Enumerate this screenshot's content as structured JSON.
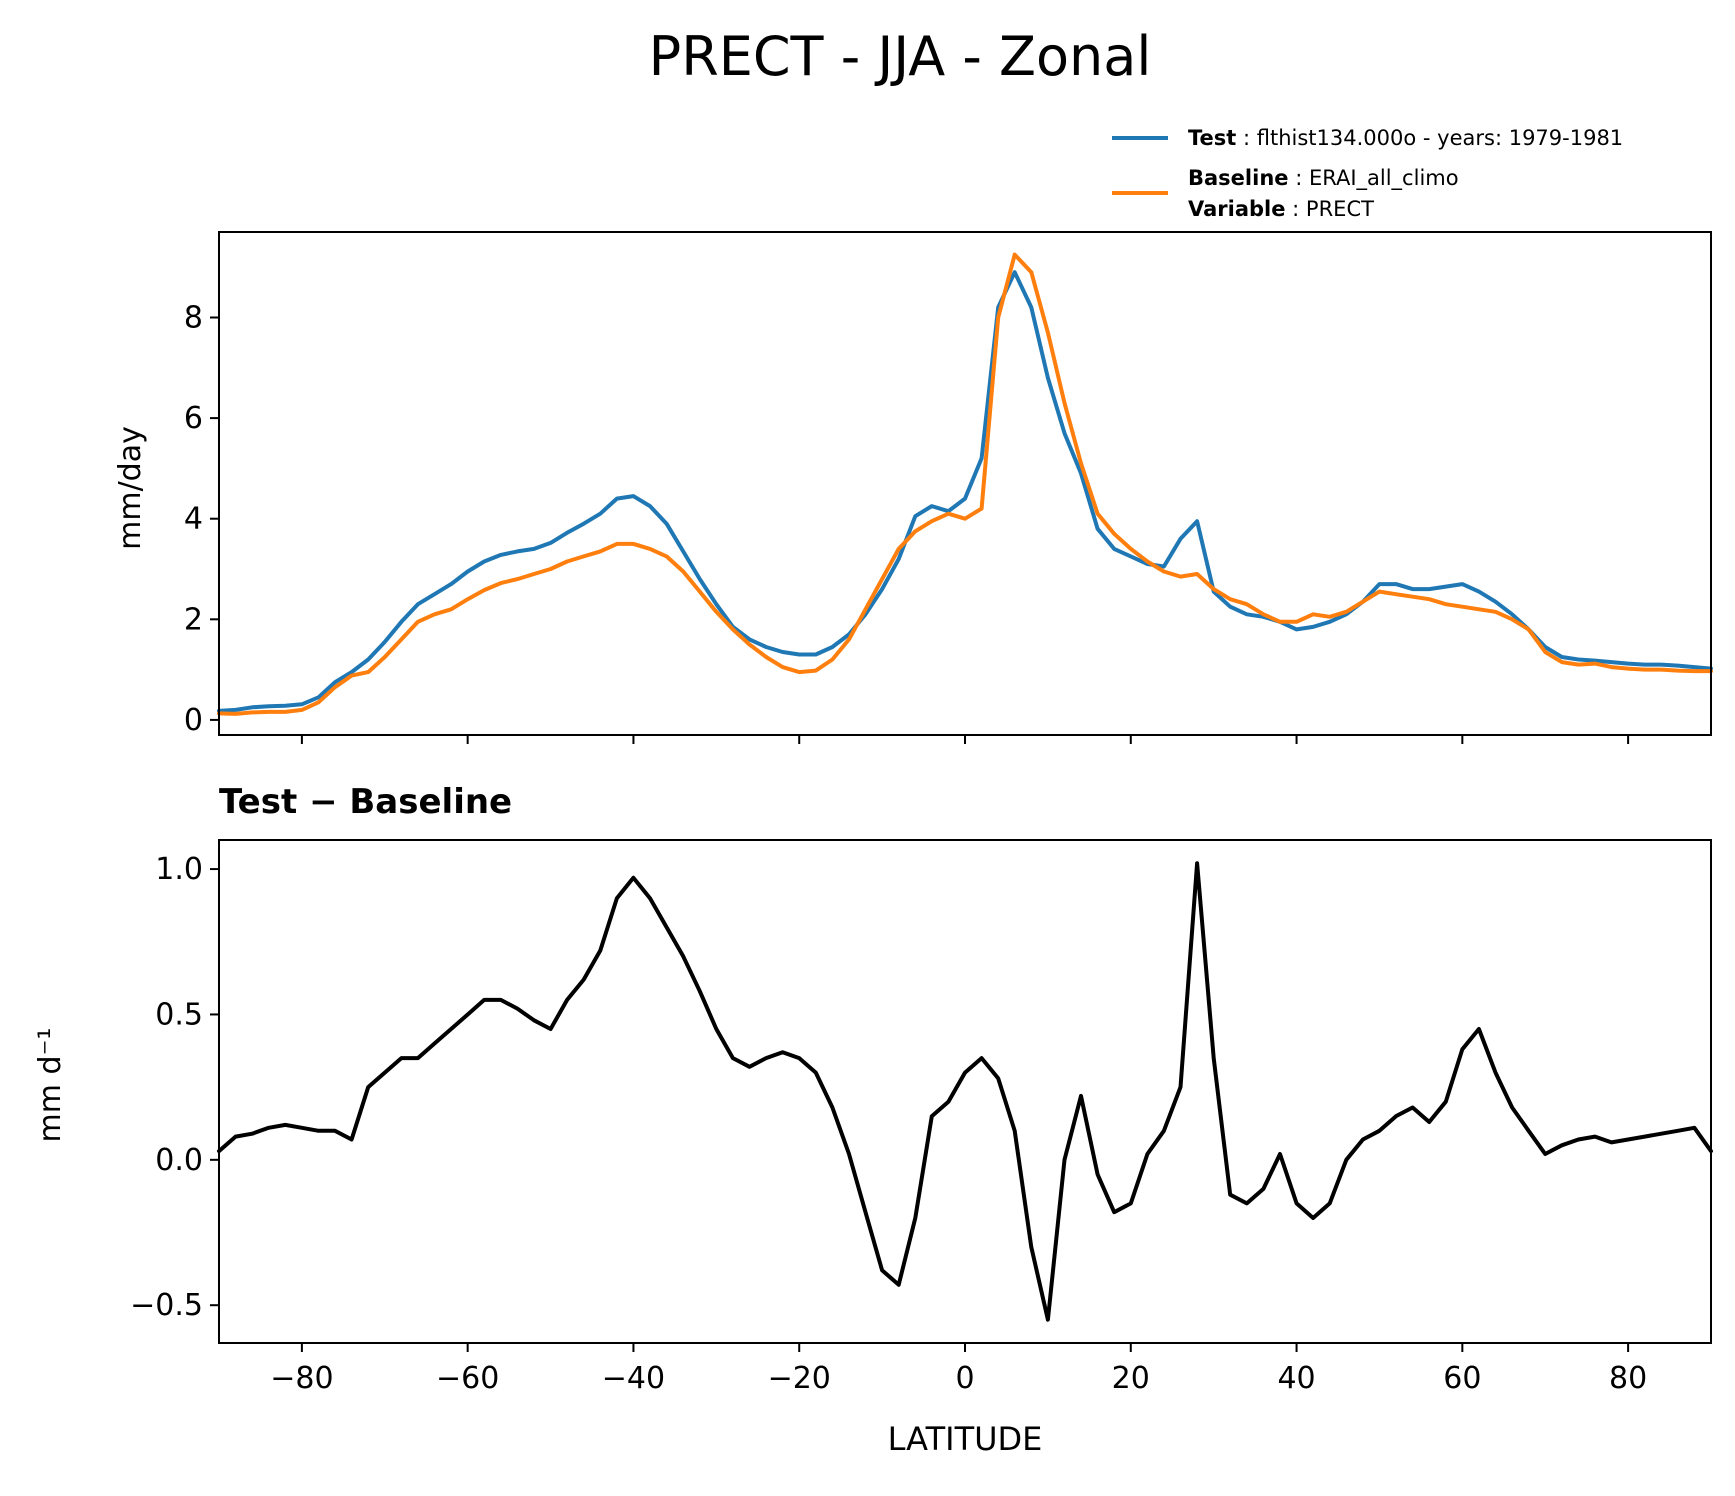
{
  "figure": {
    "title": "PRECT - JJA - Zonal",
    "legend": {
      "test_key": "Test",
      "test_text": "flthist134.000o - years: 1979-1981",
      "baseline_key": "Baseline",
      "baseline_text": "ERAI_all_climo",
      "variable_key": "Variable",
      "variable_text": "PRECT",
      "test_color": "#1f77b4",
      "baseline_color": "#ff7f0e"
    }
  },
  "chart_data": [
    {
      "type": "line",
      "title": "",
      "xlabel": "",
      "ylabel": "mm/day",
      "xlim": [
        -90,
        90
      ],
      "ylim": [
        -0.3,
        9.7
      ],
      "yticks": [
        "0",
        "2",
        "4",
        "6",
        "8"
      ],
      "grid": false,
      "legend_position": "above-right",
      "x": [
        -90,
        -88,
        -86,
        -84,
        -82,
        -80,
        -78,
        -76,
        -74,
        -72,
        -70,
        -68,
        -66,
        -64,
        -62,
        -60,
        -58,
        -56,
        -54,
        -52,
        -50,
        -48,
        -46,
        -44,
        -42,
        -40,
        -38,
        -36,
        -34,
        -32,
        -30,
        -28,
        -26,
        -24,
        -22,
        -20,
        -18,
        -16,
        -14,
        -12,
        -10,
        -8,
        -6,
        -4,
        -2,
        0,
        2,
        4,
        6,
        8,
        10,
        12,
        14,
        16,
        18,
        20,
        22,
        24,
        26,
        28,
        30,
        32,
        34,
        36,
        38,
        40,
        42,
        44,
        46,
        48,
        50,
        52,
        54,
        56,
        58,
        60,
        62,
        64,
        66,
        68,
        70,
        72,
        74,
        76,
        78,
        80,
        82,
        84,
        86,
        88,
        90
      ],
      "series": [
        {
          "name": "Test",
          "color": "#1f77b4",
          "values": [
            0.18,
            0.2,
            0.25,
            0.27,
            0.28,
            0.31,
            0.45,
            0.75,
            0.95,
            1.2,
            1.55,
            1.95,
            2.3,
            2.5,
            2.7,
            2.95,
            3.15,
            3.28,
            3.35,
            3.4,
            3.52,
            3.72,
            3.9,
            4.1,
            4.4,
            4.45,
            4.25,
            3.9,
            3.35,
            2.8,
            2.3,
            1.85,
            1.6,
            1.45,
            1.35,
            1.3,
            1.3,
            1.45,
            1.7,
            2.1,
            2.6,
            3.2,
            4.05,
            4.25,
            4.15,
            4.4,
            5.2,
            8.2,
            8.9,
            8.2,
            6.8,
            5.7,
            4.9,
            3.8,
            3.4,
            3.25,
            3.1,
            3.05,
            3.6,
            3.95,
            2.55,
            2.25,
            2.1,
            2.05,
            1.95,
            1.8,
            1.85,
            1.95,
            2.1,
            2.35,
            2.7,
            2.7,
            2.6,
            2.6,
            2.65,
            2.7,
            2.55,
            2.35,
            2.1,
            1.8,
            1.45,
            1.25,
            1.2,
            1.18,
            1.15,
            1.12,
            1.1,
            1.1,
            1.08,
            1.05,
            1.02
          ]
        },
        {
          "name": "Baseline",
          "color": "#ff7f0e",
          "values": [
            0.13,
            0.12,
            0.15,
            0.16,
            0.16,
            0.2,
            0.35,
            0.65,
            0.88,
            0.95,
            1.25,
            1.6,
            1.95,
            2.1,
            2.2,
            2.4,
            2.58,
            2.72,
            2.8,
            2.9,
            3.0,
            3.15,
            3.25,
            3.35,
            3.5,
            3.5,
            3.4,
            3.25,
            2.95,
            2.55,
            2.15,
            1.8,
            1.5,
            1.25,
            1.05,
            0.95,
            0.98,
            1.2,
            1.6,
            2.2,
            2.8,
            3.4,
            3.75,
            3.95,
            4.1,
            4.0,
            4.2,
            8.0,
            9.25,
            8.9,
            7.7,
            6.3,
            5.1,
            4.1,
            3.7,
            3.4,
            3.15,
            2.95,
            2.85,
            2.9,
            2.6,
            2.4,
            2.3,
            2.1,
            1.95,
            1.95,
            2.1,
            2.05,
            2.15,
            2.35,
            2.55,
            2.5,
            2.45,
            2.4,
            2.3,
            2.25,
            2.2,
            2.15,
            2.0,
            1.8,
            1.35,
            1.15,
            1.1,
            1.12,
            1.05,
            1.02,
            1.0,
            1.0,
            0.98,
            0.97,
            0.97
          ]
        }
      ]
    },
    {
      "type": "line",
      "title": "Test − Baseline",
      "xlabel": "LATITUDE",
      "ylabel": "mm d⁻¹",
      "xlim": [
        -90,
        90
      ],
      "ylim": [
        -0.63,
        1.1
      ],
      "yticks": [
        "−0.5",
        "0.0",
        "0.5",
        "1.0"
      ],
      "xticks": [
        "−80",
        "−60",
        "−40",
        "−20",
        "0",
        "20",
        "40",
        "60",
        "80"
      ],
      "grid": false,
      "x": [
        -90,
        -88,
        -86,
        -84,
        -82,
        -80,
        -78,
        -76,
        -74,
        -72,
        -70,
        -68,
        -66,
        -64,
        -62,
        -60,
        -58,
        -56,
        -54,
        -52,
        -50,
        -48,
        -46,
        -44,
        -42,
        -40,
        -38,
        -36,
        -34,
        -32,
        -30,
        -28,
        -26,
        -24,
        -22,
        -20,
        -18,
        -16,
        -14,
        -12,
        -10,
        -8,
        -6,
        -4,
        -2,
        0,
        2,
        4,
        6,
        8,
        10,
        12,
        14,
        16,
        18,
        20,
        22,
        24,
        26,
        28,
        30,
        32,
        34,
        36,
        38,
        40,
        42,
        44,
        46,
        48,
        50,
        52,
        54,
        56,
        58,
        60,
        62,
        64,
        66,
        68,
        70,
        72,
        74,
        76,
        78,
        80,
        82,
        84,
        86,
        88,
        90
      ],
      "series": [
        {
          "name": "",
          "color": "#000000",
          "values": [
            0.03,
            0.08,
            0.09,
            0.11,
            0.12,
            0.11,
            0.1,
            0.1,
            0.07,
            0.25,
            0.3,
            0.35,
            0.35,
            0.4,
            0.45,
            0.5,
            0.55,
            0.55,
            0.52,
            0.48,
            0.45,
            0.55,
            0.62,
            0.72,
            0.9,
            0.97,
            0.9,
            0.8,
            0.7,
            0.58,
            0.45,
            0.35,
            0.32,
            0.35,
            0.37,
            0.35,
            0.3,
            0.18,
            0.02,
            -0.18,
            -0.38,
            -0.43,
            -0.2,
            0.15,
            0.2,
            0.3,
            0.35,
            0.28,
            0.1,
            -0.3,
            -0.55,
            0.0,
            0.22,
            -0.05,
            -0.18,
            -0.15,
            0.02,
            0.1,
            0.25,
            1.02,
            0.35,
            -0.12,
            -0.15,
            -0.1,
            0.02,
            -0.15,
            -0.2,
            -0.15,
            0.0,
            0.07,
            0.1,
            0.15,
            0.18,
            0.13,
            0.2,
            0.38,
            0.45,
            0.3,
            0.18,
            0.1,
            0.02,
            0.05,
            0.07,
            0.08,
            0.06,
            0.07,
            0.08,
            0.09,
            0.1,
            0.11,
            0.03
          ]
        }
      ]
    }
  ]
}
